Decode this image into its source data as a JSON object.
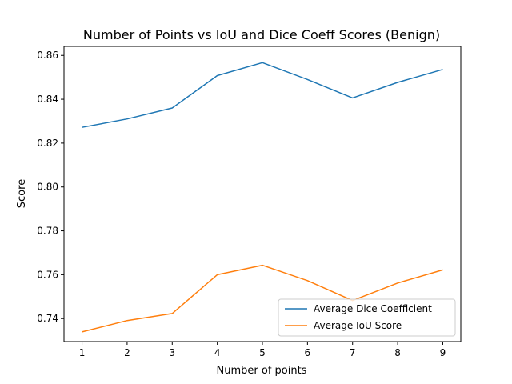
{
  "chart_data": {
    "type": "line",
    "title": "Number of Points vs IoU and Dice Coeff Scores (Benign)",
    "xlabel": "Number of points",
    "ylabel": "Score",
    "x": [
      1,
      2,
      3,
      4,
      5,
      6,
      7,
      8,
      9
    ],
    "xlim": [
      0.6,
      9.4
    ],
    "ylim": [
      0.7295,
      0.8641
    ],
    "xticks": [
      1,
      2,
      3,
      4,
      5,
      6,
      7,
      8,
      9
    ],
    "yticks": [
      0.74,
      0.76,
      0.78,
      0.8,
      0.82,
      0.84,
      0.86
    ],
    "ytick_labels": [
      "0.74",
      "0.76",
      "0.78",
      "0.80",
      "0.82",
      "0.84",
      "0.86"
    ],
    "grid": false,
    "legend_position": "lower-right",
    "series": [
      {
        "name": "Average Dice Coefficient",
        "color": "#1f77b4",
        "values": [
          0.8272,
          0.831,
          0.836,
          0.8508,
          0.8567,
          0.849,
          0.8406,
          0.8477,
          0.8536
        ]
      },
      {
        "name": "Average IoU Score",
        "color": "#ff7f0e",
        "values": [
          0.7339,
          0.7391,
          0.7423,
          0.76,
          0.7643,
          0.7573,
          0.7482,
          0.7562,
          0.7622
        ]
      }
    ]
  }
}
